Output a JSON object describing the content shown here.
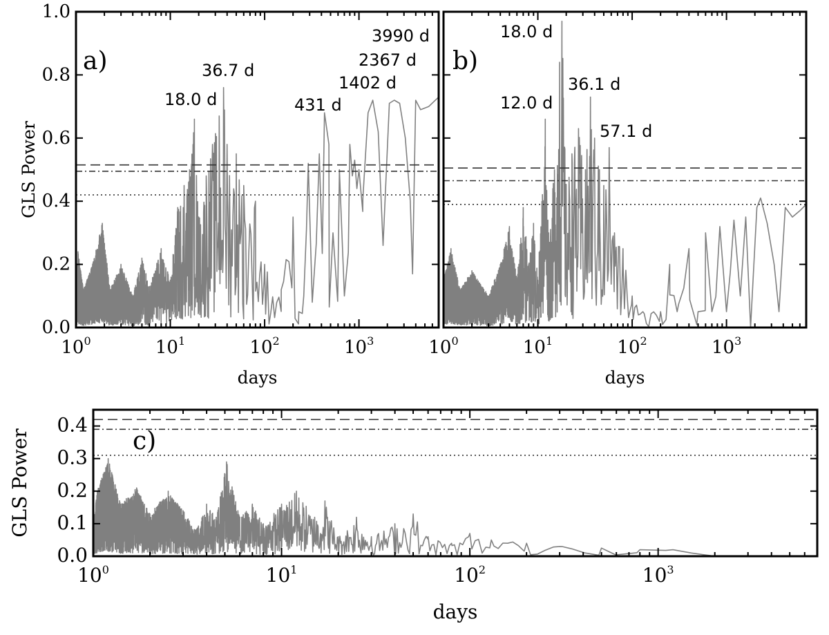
{
  "chart_data": [
    {
      "type": "line",
      "panel_label": "a)",
      "xlabel": "days",
      "ylabel": "GLS Power",
      "xscale": "log",
      "xlim": [
        1,
        7000
      ],
      "ylim": [
        0,
        1.0
      ],
      "xticks": [
        {
          "base": "10",
          "exp": "0",
          "value": 1
        },
        {
          "base": "10",
          "exp": "1",
          "value": 10
        },
        {
          "base": "10",
          "exp": "2",
          "value": 100
        },
        {
          "base": "10",
          "exp": "3",
          "value": 1000
        }
      ],
      "yticks": [
        "0.0",
        "0.2",
        "0.4",
        "0.6",
        "0.8",
        "1.0"
      ],
      "thresholds": [
        {
          "style": "dashed",
          "value": 0.515
        },
        {
          "style": "dashdot",
          "value": 0.495
        },
        {
          "style": "dotted",
          "value": 0.42
        }
      ],
      "annotations": [
        {
          "text": "18.0 d",
          "period": 18.0,
          "power": 0.66
        },
        {
          "text": "36.7 d",
          "period": 36.7,
          "power": 0.76
        },
        {
          "text": "431 d",
          "period": 431,
          "power": 0.68
        },
        {
          "text": "1402 d",
          "period": 1402,
          "power": 0.72
        },
        {
          "text": "2367 d",
          "period": 2367,
          "power": 0.72
        },
        {
          "text": "3990 d",
          "period": 3990,
          "power": 0.72
        }
      ],
      "anchors": [
        [
          1.0,
          0.1
        ],
        [
          1.05,
          0.24
        ],
        [
          1.2,
          0.12
        ],
        [
          1.5,
          0.2
        ],
        [
          1.9,
          0.33
        ],
        [
          2.3,
          0.12
        ],
        [
          3,
          0.2
        ],
        [
          4,
          0.1
        ],
        [
          5,
          0.22
        ],
        [
          6,
          0.13
        ],
        [
          8,
          0.25
        ],
        [
          10,
          0.15
        ],
        [
          12,
          0.38
        ],
        [
          14,
          0.45
        ],
        [
          16,
          0.5
        ],
        [
          18.0,
          0.66
        ],
        [
          20,
          0.35
        ],
        [
          24,
          0.48
        ],
        [
          28,
          0.58
        ],
        [
          33,
          0.67
        ],
        [
          36.7,
          0.76
        ],
        [
          40,
          0.58
        ],
        [
          50,
          0.55
        ],
        [
          60,
          0.45
        ],
        [
          80,
          0.4
        ],
        [
          100,
          0.2
        ],
        [
          150,
          0.12
        ],
        [
          200,
          0.35
        ],
        [
          230,
          0.05
        ],
        [
          260,
          0.1
        ],
        [
          290,
          0.52
        ],
        [
          320,
          0.08
        ],
        [
          380,
          0.55
        ],
        [
          431,
          0.68
        ],
        [
          480,
          0.58
        ],
        [
          530,
          0.3
        ],
        [
          620,
          0.5
        ],
        [
          700,
          0.1
        ],
        [
          800,
          0.58
        ],
        [
          850,
          0.48
        ],
        [
          900,
          0.53
        ],
        [
          950,
          0.44
        ],
        [
          1000,
          0.5
        ],
        [
          1100,
          0.41
        ],
        [
          1250,
          0.68
        ],
        [
          1402,
          0.72
        ],
        [
          1600,
          0.62
        ],
        [
          1800,
          0.26
        ],
        [
          2100,
          0.71
        ],
        [
          2367,
          0.72
        ],
        [
          2700,
          0.71
        ],
        [
          3100,
          0.6
        ],
        [
          3500,
          0.4
        ],
        [
          3700,
          0.17
        ],
        [
          3990,
          0.72
        ],
        [
          4500,
          0.69
        ],
        [
          5500,
          0.7
        ],
        [
          7000,
          0.73
        ]
      ]
    },
    {
      "type": "line",
      "panel_label": "b)",
      "xlabel": "days",
      "ylabel": "",
      "xscale": "log",
      "xlim": [
        1,
        7000
      ],
      "ylim": [
        0,
        1.0
      ],
      "xticks": [
        {
          "base": "10",
          "exp": "0",
          "value": 1
        },
        {
          "base": "10",
          "exp": "1",
          "value": 10
        },
        {
          "base": "10",
          "exp": "2",
          "value": 100
        },
        {
          "base": "10",
          "exp": "3",
          "value": 1000
        }
      ],
      "yticks": [
        "0.0",
        "0.2",
        "0.4",
        "0.6",
        "0.8",
        "1.0"
      ],
      "thresholds": [
        {
          "style": "dashed",
          "value": 0.505
        },
        {
          "style": "dashdot",
          "value": 0.465
        },
        {
          "style": "dotted",
          "value": 0.39
        }
      ],
      "annotations": [
        {
          "text": "18.0 d",
          "period": 18.0,
          "power": 0.97
        },
        {
          "text": "12.0 d",
          "period": 12.0,
          "power": 0.66
        },
        {
          "text": "36.1 d",
          "period": 36.1,
          "power": 0.73
        },
        {
          "text": "57.1 d",
          "period": 57.1,
          "power": 0.57
        }
      ],
      "anchors": [
        [
          1.0,
          0.15
        ],
        [
          1.2,
          0.25
        ],
        [
          1.5,
          0.12
        ],
        [
          2,
          0.18
        ],
        [
          3,
          0.1
        ],
        [
          4,
          0.2
        ],
        [
          5,
          0.32
        ],
        [
          6,
          0.15
        ],
        [
          7,
          0.38
        ],
        [
          8,
          0.2
        ],
        [
          9,
          0.33
        ],
        [
          10,
          0.15
        ],
        [
          12.0,
          0.66
        ],
        [
          13,
          0.3
        ],
        [
          15,
          0.5
        ],
        [
          17,
          0.84
        ],
        [
          18.0,
          0.97
        ],
        [
          20,
          0.45
        ],
        [
          23,
          0.55
        ],
        [
          27,
          0.63
        ],
        [
          32,
          0.5
        ],
        [
          36.1,
          0.73
        ],
        [
          40,
          0.6
        ],
        [
          45,
          0.5
        ],
        [
          50,
          0.45
        ],
        [
          57.1,
          0.57
        ],
        [
          65,
          0.3
        ],
        [
          80,
          0.25
        ],
        [
          100,
          0.1
        ],
        [
          130,
          0.05
        ],
        [
          200,
          0.05
        ],
        [
          250,
          0.2
        ],
        [
          300,
          0.05
        ],
        [
          400,
          0.25
        ],
        [
          500,
          0.05
        ],
        [
          600,
          0.3
        ],
        [
          700,
          0.05
        ],
        [
          850,
          0.32
        ],
        [
          1000,
          0.05
        ],
        [
          1200,
          0.34
        ],
        [
          1400,
          0.1
        ],
        [
          1600,
          0.35
        ],
        [
          1800,
          0.0
        ],
        [
          2100,
          0.38
        ],
        [
          2300,
          0.41
        ],
        [
          2700,
          0.33
        ],
        [
          3200,
          0.2
        ],
        [
          3600,
          0.05
        ],
        [
          4200,
          0.38
        ],
        [
          5000,
          0.35
        ],
        [
          6000,
          0.37
        ],
        [
          7000,
          0.39
        ]
      ]
    },
    {
      "type": "line",
      "panel_label": "c)",
      "xlabel": "days",
      "ylabel": "GLS Power",
      "xscale": "log",
      "xlim": [
        1,
        7000
      ],
      "ylim": [
        0,
        0.45
      ],
      "xticks": [
        {
          "base": "10",
          "exp": "0",
          "value": 1
        },
        {
          "base": "10",
          "exp": "1",
          "value": 10
        },
        {
          "base": "10",
          "exp": "2",
          "value": 100
        },
        {
          "base": "10",
          "exp": "3",
          "value": 1000
        }
      ],
      "yticks": [
        "0.0",
        "0.1",
        "0.2",
        "0.3",
        "0.4"
      ],
      "thresholds": [
        {
          "style": "dashed",
          "value": 0.42
        },
        {
          "style": "dashdot",
          "value": 0.39
        },
        {
          "style": "dotted",
          "value": 0.31
        }
      ],
      "annotations": [],
      "anchors": [
        [
          1.0,
          0.1
        ],
        [
          1.05,
          0.2
        ],
        [
          1.2,
          0.3
        ],
        [
          1.4,
          0.16
        ],
        [
          1.7,
          0.21
        ],
        [
          2,
          0.13
        ],
        [
          2.5,
          0.2
        ],
        [
          3,
          0.14
        ],
        [
          3.5,
          0.08
        ],
        [
          4,
          0.16
        ],
        [
          4.5,
          0.12
        ],
        [
          5.1,
          0.29
        ],
        [
          6,
          0.12
        ],
        [
          7,
          0.16
        ],
        [
          8,
          0.1
        ],
        [
          10,
          0.16
        ],
        [
          12,
          0.2
        ],
        [
          15,
          0.12
        ],
        [
          17,
          0.17
        ],
        [
          20,
          0.06
        ],
        [
          25,
          0.12
        ],
        [
          30,
          0.06
        ],
        [
          40,
          0.1
        ],
        [
          50,
          0.13
        ],
        [
          60,
          0.06
        ],
        [
          80,
          0.04
        ],
        [
          100,
          0.07
        ],
        [
          130,
          0.05
        ],
        [
          200,
          0.04
        ],
        [
          300,
          0.03
        ],
        [
          500,
          0.025
        ],
        [
          800,
          0.02
        ],
        [
          1200,
          0.02
        ],
        [
          1500,
          0.01
        ],
        [
          2000,
          0.0
        ],
        [
          7000,
          0.0
        ]
      ]
    }
  ]
}
